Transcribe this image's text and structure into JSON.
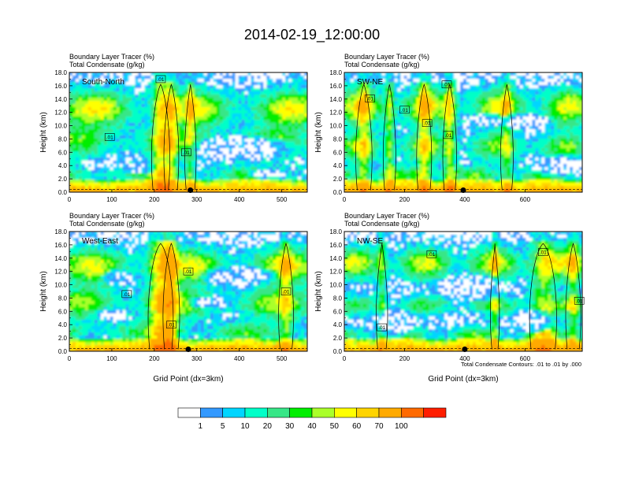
{
  "figure": {
    "title": "2014-02-19_12:00:00",
    "footnote": "Total Condensate Contours: .01 to .01 by .000"
  },
  "chart_data": [
    {
      "type": "heatmap",
      "panel": "South-North",
      "subtitle_line1": "Boundary Layer Tracer   (%)",
      "subtitle_line2": "Total Condensate   (g/kg)",
      "ylabel": "Height (km)",
      "xlabel": "",
      "xlim": [
        0,
        560
      ],
      "ylim": [
        0,
        18
      ],
      "x_ticks": [
        0,
        100,
        200,
        300,
        400,
        500
      ],
      "y_ticks": [
        "0.0",
        "2.0",
        "4.0",
        "6.0",
        "8.0",
        "10.0",
        "12.0",
        "14.0",
        "16.0",
        "18.0"
      ],
      "marker_x": 285,
      "contour_labels": [
        {
          "text": ".01",
          "x": 215,
          "y": 17.0
        },
        {
          "text": ".01",
          "x": 95,
          "y": 8.3
        },
        {
          "text": ".01",
          "x": 275,
          "y": 6.0
        }
      ]
    },
    {
      "type": "heatmap",
      "panel": "SW-NE",
      "subtitle_line1": "Boundary Layer Tracer   (%)",
      "subtitle_line2": "Total Condensate   (g/kg)",
      "ylabel": "Height (km)",
      "xlabel": "",
      "xlim": [
        0,
        790
      ],
      "ylim": [
        0,
        18
      ],
      "x_ticks": [
        0,
        200,
        400,
        600
      ],
      "y_ticks": [
        "0.0",
        "2.0",
        "4.0",
        "6.0",
        "8.0",
        "10.0",
        "12.0",
        "14.0",
        "16.0",
        "18.0"
      ],
      "marker_x": 395,
      "contour_labels": [
        {
          "text": ".01",
          "x": 340,
          "y": 16.2
        },
        {
          "text": ".01",
          "x": 85,
          "y": 14.1
        },
        {
          "text": ".01",
          "x": 200,
          "y": 12.4
        },
        {
          "text": ".01",
          "x": 275,
          "y": 10.4
        },
        {
          "text": ".01",
          "x": 345,
          "y": 8.6
        }
      ]
    },
    {
      "type": "heatmap",
      "panel": "West-East",
      "subtitle_line1": "Boundary Layer Tracer   (%)",
      "subtitle_line2": "Total Condensate   (g/kg)",
      "ylabel": "Height (km)",
      "xlabel": "Grid Point (dx=3km)",
      "xlim": [
        0,
        560
      ],
      "ylim": [
        0,
        18
      ],
      "x_ticks": [
        0,
        100,
        200,
        300,
        400,
        500
      ],
      "y_ticks": [
        "0.0",
        "2.0",
        "4.0",
        "6.0",
        "8.0",
        "10.0",
        "12.0",
        "14.0",
        "16.0",
        "18.0"
      ],
      "marker_x": 280,
      "contour_labels": [
        {
          "text": ".01",
          "x": 280,
          "y": 12.0
        },
        {
          "text": ".01",
          "x": 135,
          "y": 8.6
        },
        {
          "text": ".01",
          "x": 510,
          "y": 9.0
        },
        {
          "text": ".01",
          "x": 240,
          "y": 4.0
        }
      ]
    },
    {
      "type": "heatmap",
      "panel": "NW-SE",
      "subtitle_line1": "Boundary Layer Tracer   (%)",
      "subtitle_line2": "Total Condensate   (g/kg)",
      "ylabel": "Height (km)",
      "xlabel": "Grid Point (dx=3km)",
      "xlim": [
        0,
        790
      ],
      "ylim": [
        0,
        18
      ],
      "x_ticks": [
        0,
        200,
        400,
        600
      ],
      "y_ticks": [
        "0.0",
        "2.0",
        "4.0",
        "6.0",
        "8.0",
        "10.0",
        "12.0",
        "14.0",
        "16.0",
        "18.0"
      ],
      "marker_x": 400,
      "contour_labels": [
        {
          "text": ".01",
          "x": 290,
          "y": 14.6
        },
        {
          "text": ".01",
          "x": 660,
          "y": 14.9
        },
        {
          "text": ".01",
          "x": 780,
          "y": 7.6
        },
        {
          "text": ".01",
          "x": 125,
          "y": 3.6
        }
      ]
    }
  ],
  "colorbar": {
    "labels": [
      "1",
      "5",
      "10",
      "20",
      "30",
      "40",
      "50",
      "60",
      "70",
      "100"
    ],
    "colors": [
      "#ffffff",
      "#3399ff",
      "#00d5ff",
      "#00ffc8",
      "#37e687",
      "#00ee00",
      "#aaff2a",
      "#ffff00",
      "#ffd400",
      "#ffaa00",
      "#ff6a00",
      "#ff1e00"
    ]
  }
}
